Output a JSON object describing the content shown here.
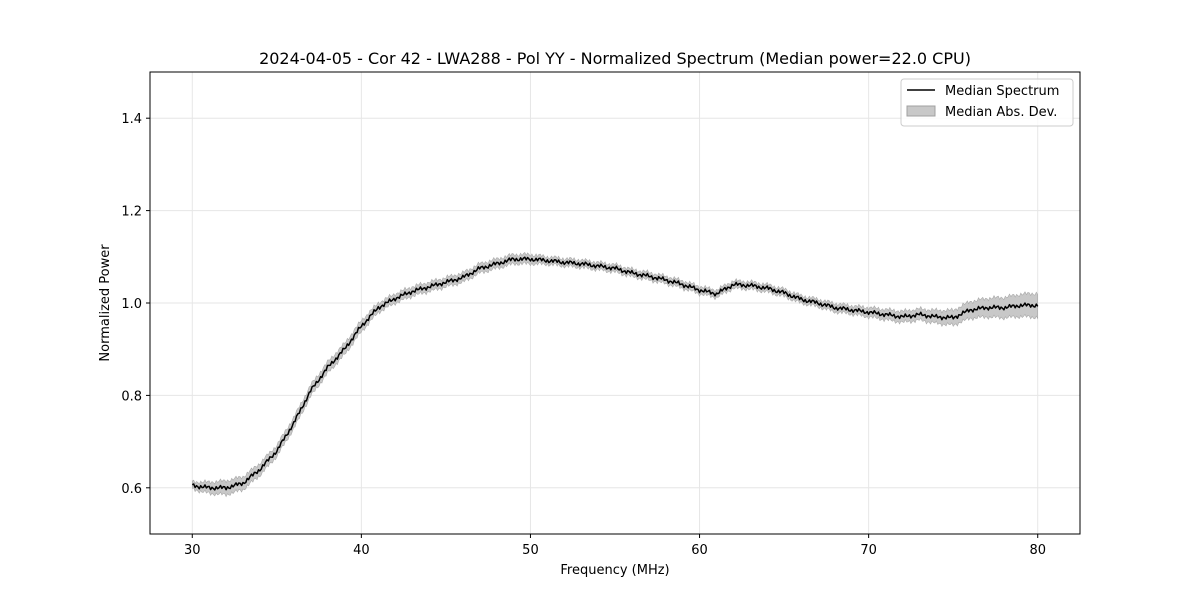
{
  "chart_data": {
    "type": "line",
    "title": "2024-04-05 - Cor 42 - LWA288 - Pol YY - Normalized Spectrum (Median power=22.0 CPU)",
    "xlabel": "Frequency (MHz)",
    "ylabel": "Normalized Power",
    "xlim": [
      27.5,
      82.5
    ],
    "ylim": [
      0.5,
      1.5
    ],
    "xticks": [
      30,
      40,
      50,
      60,
      70,
      80
    ],
    "yticks": [
      0.6,
      0.8,
      1.0,
      1.2,
      1.4
    ],
    "xtick_labels": [
      "30",
      "40",
      "50",
      "60",
      "70",
      "80"
    ],
    "ytick_labels": [
      "0.6",
      "0.8",
      "1.0",
      "1.2",
      "1.4"
    ],
    "grid": true,
    "legend_position": "top-right",
    "series": [
      {
        "name": "Median Spectrum",
        "color": "#000000",
        "x": [
          30,
          31,
          32,
          33,
          34,
          35,
          36,
          37,
          38,
          39,
          40,
          41,
          42,
          43,
          44,
          45,
          46,
          47,
          48,
          49,
          50,
          51,
          52,
          53,
          54,
          55,
          56,
          57,
          58,
          59,
          60,
          61,
          62,
          63,
          64,
          65,
          66,
          67,
          68,
          69,
          70,
          71,
          72,
          73,
          74,
          75,
          76,
          77,
          78,
          79,
          80
        ],
        "y": [
          0.605,
          0.6,
          0.6,
          0.61,
          0.64,
          0.68,
          0.74,
          0.81,
          0.86,
          0.9,
          0.95,
          0.99,
          1.01,
          1.025,
          1.035,
          1.045,
          1.055,
          1.075,
          1.085,
          1.095,
          1.095,
          1.092,
          1.088,
          1.085,
          1.08,
          1.075,
          1.065,
          1.058,
          1.05,
          1.04,
          1.028,
          1.02,
          1.04,
          1.038,
          1.032,
          1.022,
          1.008,
          1.0,
          0.99,
          0.985,
          0.98,
          0.975,
          0.97,
          0.975,
          0.97,
          0.968,
          0.985,
          0.99,
          0.99,
          0.995,
          0.995
        ]
      }
    ],
    "band": {
      "name": "Median Abs. Dev.",
      "color": "#c8c8c8",
      "x": [
        30,
        31,
        32,
        33,
        34,
        35,
        36,
        37,
        38,
        39,
        40,
        41,
        42,
        43,
        44,
        45,
        46,
        47,
        48,
        49,
        50,
        51,
        52,
        53,
        54,
        55,
        56,
        57,
        58,
        59,
        60,
        61,
        62,
        63,
        64,
        65,
        66,
        67,
        68,
        69,
        70,
        71,
        72,
        73,
        74,
        75,
        76,
        77,
        78,
        79,
        80
      ],
      "halfwidth": [
        0.008,
        0.012,
        0.015,
        0.014,
        0.013,
        0.012,
        0.012,
        0.012,
        0.012,
        0.012,
        0.012,
        0.01,
        0.01,
        0.01,
        0.01,
        0.01,
        0.01,
        0.01,
        0.01,
        0.01,
        0.01,
        0.008,
        0.008,
        0.008,
        0.008,
        0.008,
        0.008,
        0.008,
        0.008,
        0.008,
        0.008,
        0.008,
        0.008,
        0.008,
        0.008,
        0.008,
        0.008,
        0.008,
        0.009,
        0.009,
        0.01,
        0.011,
        0.012,
        0.012,
        0.014,
        0.016,
        0.018,
        0.02,
        0.022,
        0.024,
        0.026
      ]
    }
  }
}
